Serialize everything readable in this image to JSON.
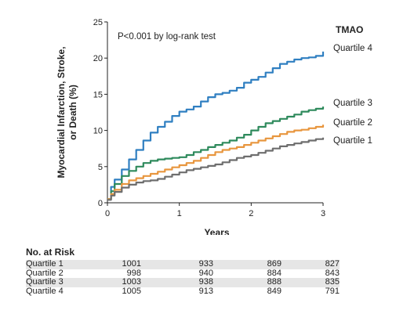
{
  "chart_data": {
    "type": "line",
    "title": "",
    "annotation": "P<0.001 by log-rank test",
    "xlabel": "Years",
    "ylabel_lines": [
      "Myocardial Infarction, Stroke,",
      "or Death (%)"
    ],
    "xlim": [
      0,
      3
    ],
    "ylim": [
      0,
      25
    ],
    "xticks": [
      0,
      1,
      2,
      3
    ],
    "yticks": [
      0,
      5,
      10,
      15,
      20,
      25
    ],
    "legend_title": "TMAO",
    "legend_placement": "right, at line ends",
    "grid": false,
    "series": [
      {
        "name": "Quartile 4",
        "color": "#2f7fc1",
        "x": [
          0,
          0.05,
          0.1,
          0.2,
          0.3,
          0.4,
          0.5,
          0.6,
          0.7,
          0.8,
          0.9,
          1.0,
          1.1,
          1.2,
          1.3,
          1.4,
          1.5,
          1.6,
          1.7,
          1.8,
          1.9,
          2.0,
          2.1,
          2.2,
          2.3,
          2.4,
          2.5,
          2.6,
          2.7,
          2.8,
          2.9,
          3.0
        ],
        "y": [
          0.5,
          2.2,
          3.2,
          4.6,
          6.0,
          7.3,
          8.6,
          9.7,
          10.5,
          11.2,
          12.0,
          12.6,
          12.9,
          13.3,
          14.0,
          14.6,
          15.0,
          15.2,
          15.5,
          15.9,
          16.6,
          17.0,
          17.4,
          18.0,
          18.6,
          19.2,
          19.5,
          19.8,
          20.0,
          20.1,
          20.3,
          20.9
        ]
      },
      {
        "name": "Quartile 3",
        "color": "#2e8a5c",
        "x": [
          0,
          0.05,
          0.1,
          0.2,
          0.3,
          0.4,
          0.5,
          0.6,
          0.7,
          0.8,
          0.9,
          1.0,
          1.1,
          1.2,
          1.3,
          1.4,
          1.5,
          1.6,
          1.7,
          1.8,
          1.9,
          2.0,
          2.1,
          2.2,
          2.3,
          2.4,
          2.5,
          2.6,
          2.7,
          2.8,
          2.9,
          3.0
        ],
        "y": [
          0.5,
          1.6,
          2.6,
          3.7,
          4.4,
          5.0,
          5.5,
          5.8,
          6.0,
          6.1,
          6.2,
          6.3,
          6.6,
          7.0,
          7.3,
          7.7,
          8.0,
          8.3,
          8.6,
          9.0,
          9.4,
          10.0,
          10.5,
          11.0,
          11.3,
          11.6,
          11.9,
          12.2,
          12.6,
          12.8,
          13.0,
          13.3
        ]
      },
      {
        "name": "Quartile 2",
        "color": "#e8963e",
        "x": [
          0,
          0.05,
          0.1,
          0.2,
          0.3,
          0.4,
          0.5,
          0.6,
          0.7,
          0.8,
          0.9,
          1.0,
          1.1,
          1.2,
          1.3,
          1.4,
          1.5,
          1.6,
          1.7,
          1.8,
          1.9,
          2.0,
          2.1,
          2.2,
          2.3,
          2.4,
          2.5,
          2.6,
          2.7,
          2.8,
          2.9,
          3.0
        ],
        "y": [
          0.5,
          1.2,
          1.8,
          2.6,
          3.1,
          3.4,
          3.7,
          4.0,
          4.3,
          4.6,
          4.9,
          5.2,
          5.5,
          5.8,
          6.2,
          6.6,
          7.0,
          7.3,
          7.5,
          7.7,
          8.0,
          8.3,
          8.6,
          8.9,
          9.2,
          9.5,
          9.8,
          10.0,
          10.1,
          10.3,
          10.5,
          10.8
        ]
      },
      {
        "name": "Quartile 1",
        "color": "#6e6e6e",
        "x": [
          0,
          0.05,
          0.1,
          0.2,
          0.3,
          0.4,
          0.5,
          0.6,
          0.7,
          0.8,
          0.9,
          1.0,
          1.1,
          1.2,
          1.3,
          1.4,
          1.5,
          1.6,
          1.7,
          1.8,
          1.9,
          2.0,
          2.1,
          2.2,
          2.3,
          2.4,
          2.5,
          2.6,
          2.7,
          2.8,
          2.9,
          3.0
        ],
        "y": [
          0.4,
          1.0,
          1.5,
          2.1,
          2.5,
          2.8,
          3.0,
          3.1,
          3.3,
          3.6,
          3.9,
          4.2,
          4.5,
          4.7,
          4.9,
          5.1,
          5.3,
          5.6,
          5.9,
          6.2,
          6.4,
          6.6,
          6.9,
          7.2,
          7.5,
          7.8,
          8.0,
          8.2,
          8.4,
          8.6,
          8.8,
          9.0
        ]
      }
    ]
  },
  "risk_table": {
    "title": "No. at Risk",
    "rows": [
      {
        "label": "Quartile 1",
        "values": [
          "1001",
          "933",
          "869",
          "827"
        ]
      },
      {
        "label": "Quartile 2",
        "values": [
          "998",
          "940",
          "884",
          "843"
        ]
      },
      {
        "label": "Quartile 3",
        "values": [
          "1003",
          "938",
          "888",
          "835"
        ]
      },
      {
        "label": "Quartile 4",
        "values": [
          "1005",
          "913",
          "849",
          "791"
        ]
      }
    ]
  }
}
